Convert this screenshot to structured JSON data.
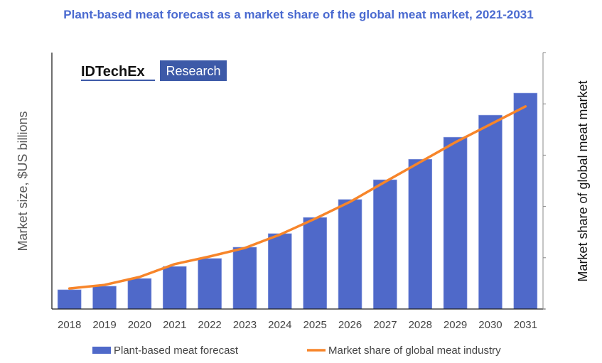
{
  "chart_data": {
    "type": "bar",
    "title": "Plant-based meat forecast as a market share of the global meat market, 2021-2031",
    "ylabel": "Market size, $US billions",
    "y2label": "Market share of global meat market",
    "categories": [
      "2018",
      "2019",
      "2020",
      "2021",
      "2022",
      "2023",
      "2024",
      "2025",
      "2026",
      "2027",
      "2028",
      "2029",
      "2030",
      "2031"
    ],
    "ylim": [
      0,
      100
    ],
    "y2lim": [
      0,
      100
    ],
    "y_scale_note": "",
    "grid": false,
    "legend_position": "bottom",
    "series": [
      {
        "name": "Plant-based meat forecast",
        "type": "bar",
        "color": "#4f69c9",
        "values": [
          7.5,
          8.9,
          11.9,
          16.6,
          19.7,
          24.1,
          29.4,
          35.7,
          42.7,
          50.4,
          58.4,
          67,
          75.6,
          84.2
        ]
      },
      {
        "name": "Market share of global meat industry",
        "type": "line",
        "axis": "right",
        "color": "#f7852a",
        "values": [
          8,
          9.4,
          12.5,
          17.5,
          20.5,
          23.8,
          29,
          35.2,
          41.8,
          49.6,
          57.3,
          65,
          72,
          79
        ]
      }
    ]
  },
  "logo": {
    "left": "IDTechEx",
    "right": "Research",
    "color": "#3d5aa8"
  }
}
